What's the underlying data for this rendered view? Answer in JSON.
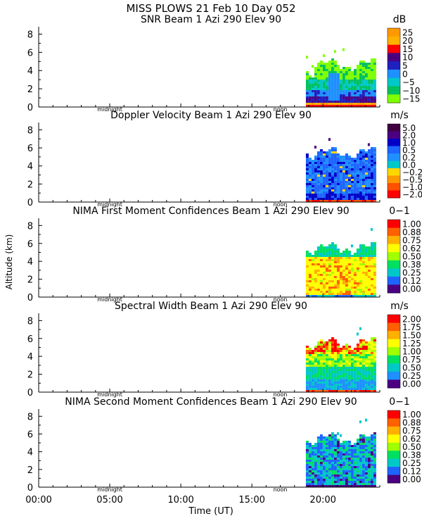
{
  "header": {
    "line1": "MISS PLOWS  21 Feb 10 Day 052"
  },
  "shared_axes": {
    "ylabel": "Altitude (km)",
    "xlabel": "Time (UT)",
    "xlim": [
      0,
      24
    ],
    "xticks": [
      0,
      5,
      10,
      15,
      20
    ],
    "xtick_labels": [
      "00:00",
      "05:00",
      "10:00",
      "15:00",
      "20:00"
    ],
    "ylim": [
      0,
      8.5
    ],
    "yticks": [
      0,
      2,
      4,
      6,
      8
    ],
    "ytick_labels": [
      "0",
      "2",
      "4",
      "6",
      "8"
    ],
    "day_markers": [
      {
        "label": "midnight",
        "hour": 5.0
      },
      {
        "label": "noon",
        "hour": 17.0
      }
    ]
  },
  "data_coverage": {
    "start_hour": 18.8,
    "end_hour": 23.6
  },
  "chart_data": [
    {
      "type": "heatmap",
      "title": "SNR Beam 1 Azi 290 Elev 90",
      "units": "dB",
      "colorbar_labels": [
        "25",
        "20",
        "15",
        "10",
        "5",
        "0",
        "−5",
        "−10",
        "−15"
      ],
      "colorbar_colors": [
        "#ff9900",
        "#ffb000",
        "#ff0000",
        "#4b0082",
        "#2020c0",
        "#1e90ff",
        "#00c8c8",
        "#00c060",
        "#80ff00"
      ],
      "field": "snr"
    },
    {
      "type": "heatmap",
      "title": "Doppler Velocity Beam 1 Azi 290 Elev 90",
      "units": "m/s",
      "colorbar_labels": [
        "5.0",
        "2.0",
        "1.0",
        "0.5",
        "0.2",
        "0.0",
        "−0.2",
        "−0.5",
        "−1.0",
        "−2.0"
      ],
      "colorbar_colors": [
        "#400040",
        "#4b0082",
        "#0000c8",
        "#1e64ff",
        "#1e90ff",
        "#00c8c8",
        "#ffd700",
        "#ff9900",
        "#ff5000",
        "#ff0000"
      ],
      "field": "doppler"
    },
    {
      "type": "heatmap",
      "title": "NIMA First Moment Confidences Beam 1 Azi 290 Elev 90",
      "units": "0−1",
      "colorbar_labels": [
        "1.00",
        "0.88",
        "0.75",
        "0.62",
        "0.50",
        "0.38",
        "0.25",
        "0.12",
        "0.00"
      ],
      "colorbar_colors": [
        "#ff0000",
        "#ff6000",
        "#ffb000",
        "#ffff00",
        "#a0ff00",
        "#00e060",
        "#00c8c8",
        "#1e64ff",
        "#4b0082"
      ],
      "field": "conf1"
    },
    {
      "type": "heatmap",
      "title": "Spectral Width Beam 1 Azi 290 Elev 90",
      "units": "m/s",
      "colorbar_labels": [
        "2.00",
        "1.75",
        "1.50",
        "1.25",
        "1.00",
        "0.75",
        "0.50",
        "0.25",
        "0.00"
      ],
      "colorbar_colors": [
        "#ff0000",
        "#ff6000",
        "#ffb000",
        "#ffff00",
        "#a0ff00",
        "#00e060",
        "#00c8c8",
        "#1e90ff",
        "#4b0082"
      ],
      "field": "width"
    },
    {
      "type": "heatmap",
      "title": "NIMA Second Moment Confidences Beam 1 Azi 290 Elev 90",
      "units": "0−1",
      "colorbar_labels": [
        "1.00",
        "0.88",
        "0.75",
        "0.62",
        "0.50",
        "0.38",
        "0.25",
        "0.12",
        "0.00"
      ],
      "colorbar_colors": [
        "#ff0000",
        "#ff6000",
        "#ffb000",
        "#ffff00",
        "#a0ff00",
        "#00e060",
        "#00c8c8",
        "#1e64ff",
        "#4b0082"
      ],
      "field": "conf2"
    }
  ]
}
